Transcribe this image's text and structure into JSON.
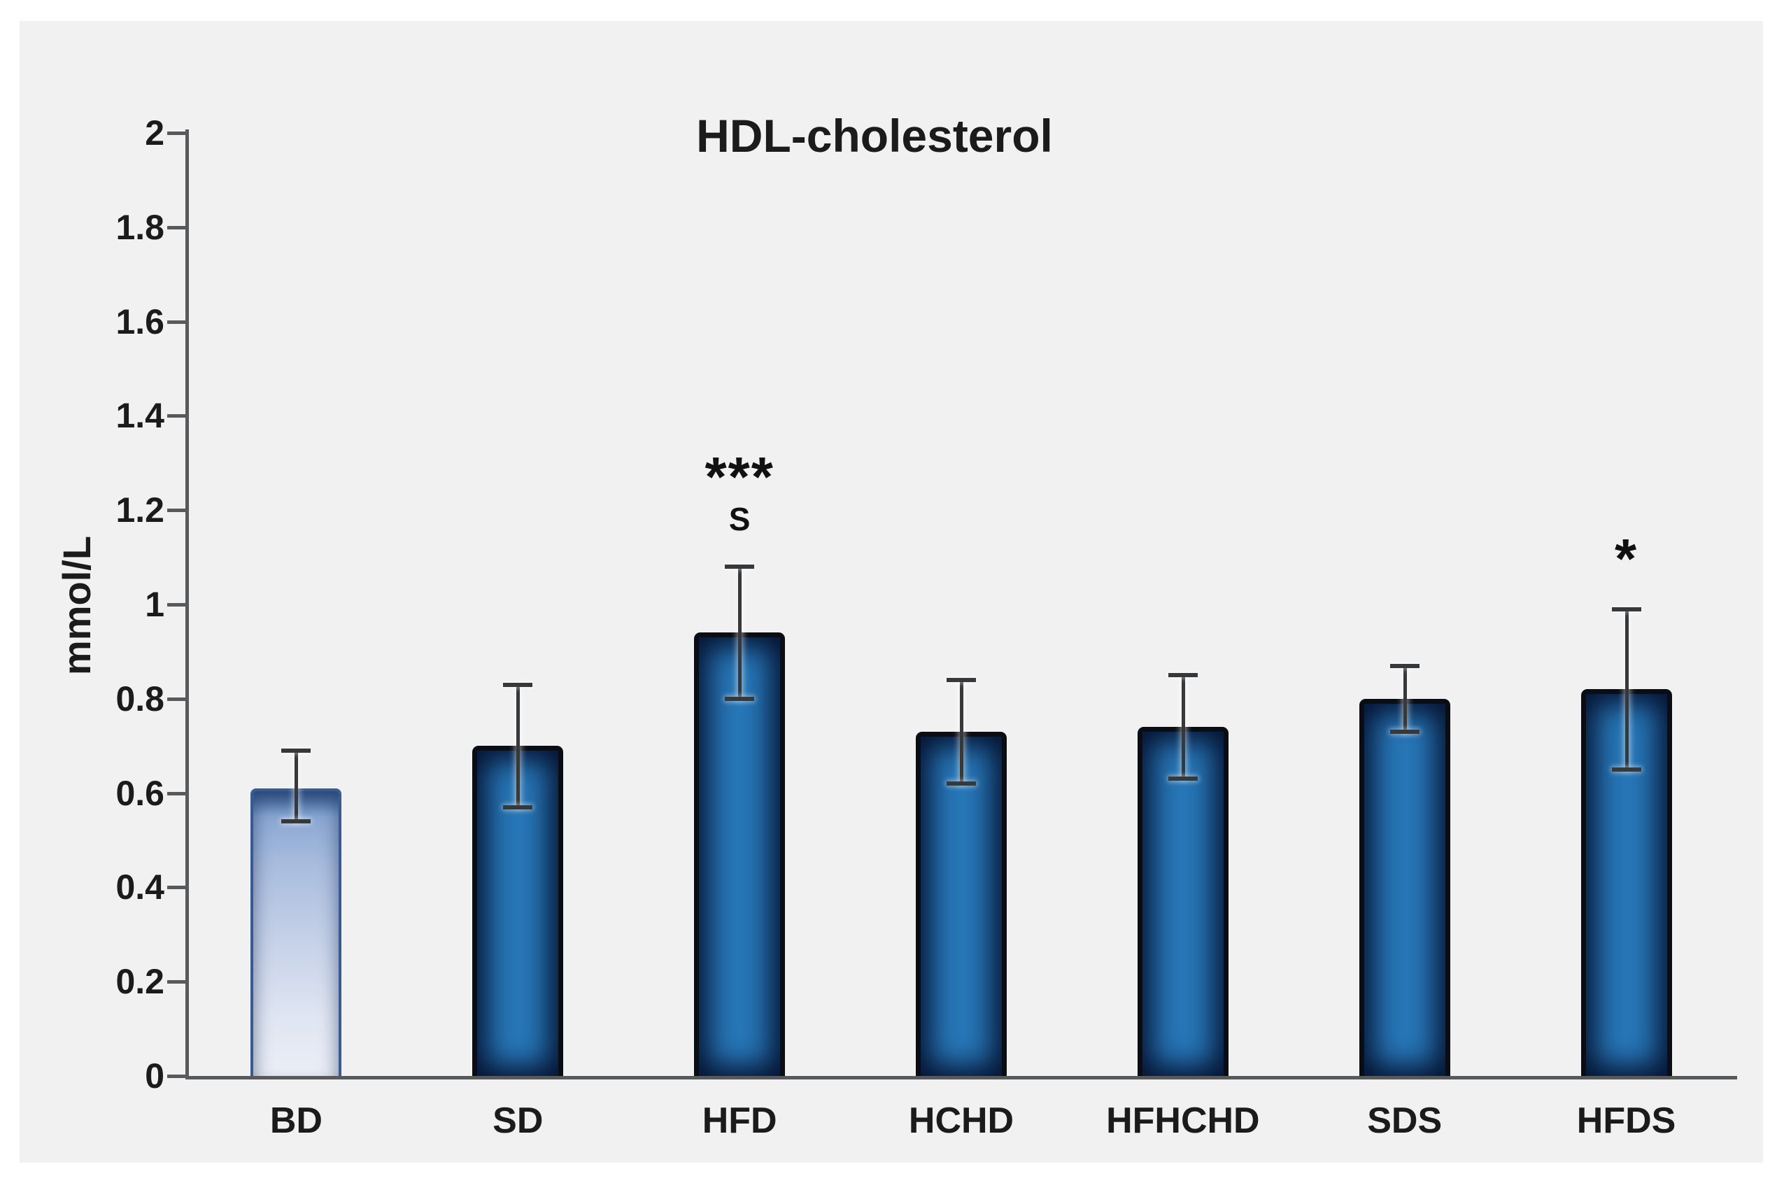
{
  "figure": {
    "background_color": "#ffffff",
    "panel_color": "#f1f1f1",
    "axis_color": "#58595b",
    "error_bar_color": "#37383a",
    "text_color": "#1b1b1b"
  },
  "chart_data": {
    "type": "bar",
    "title": "HDL-cholesterol",
    "xlabel": "",
    "ylabel": "mmol/L",
    "ylim": [
      0,
      2
    ],
    "ytick_step": 0.2,
    "ytick_labels": [
      "0",
      "0.2",
      "0.4",
      "0.6",
      "0.8",
      "1",
      "1.2",
      "1.4",
      "1.6",
      "1.8",
      "2"
    ],
    "grid": false,
    "legend": false,
    "categories": [
      "BD",
      "SD",
      "HFD",
      "HCHD",
      "HFHCHD",
      "SDS",
      "HFDS"
    ],
    "values": [
      0.61,
      0.7,
      0.94,
      0.73,
      0.74,
      0.8,
      0.82
    ],
    "error_low": [
      0.54,
      0.57,
      0.8,
      0.62,
      0.63,
      0.73,
      0.65
    ],
    "error_high": [
      0.69,
      0.83,
      1.08,
      0.84,
      0.85,
      0.87,
      0.99
    ],
    "annotations": [
      [],
      [],
      [
        "***",
        "S"
      ],
      [],
      [],
      [],
      [
        "*"
      ]
    ],
    "bar_colors": {
      "first_bar_gradient_top": "#4d79b0",
      "first_bar_gradient_bottom": "#eaeef6",
      "solid_fill": "#2777b8",
      "inner_glow": "#051230",
      "border": "#0b0d14"
    }
  }
}
